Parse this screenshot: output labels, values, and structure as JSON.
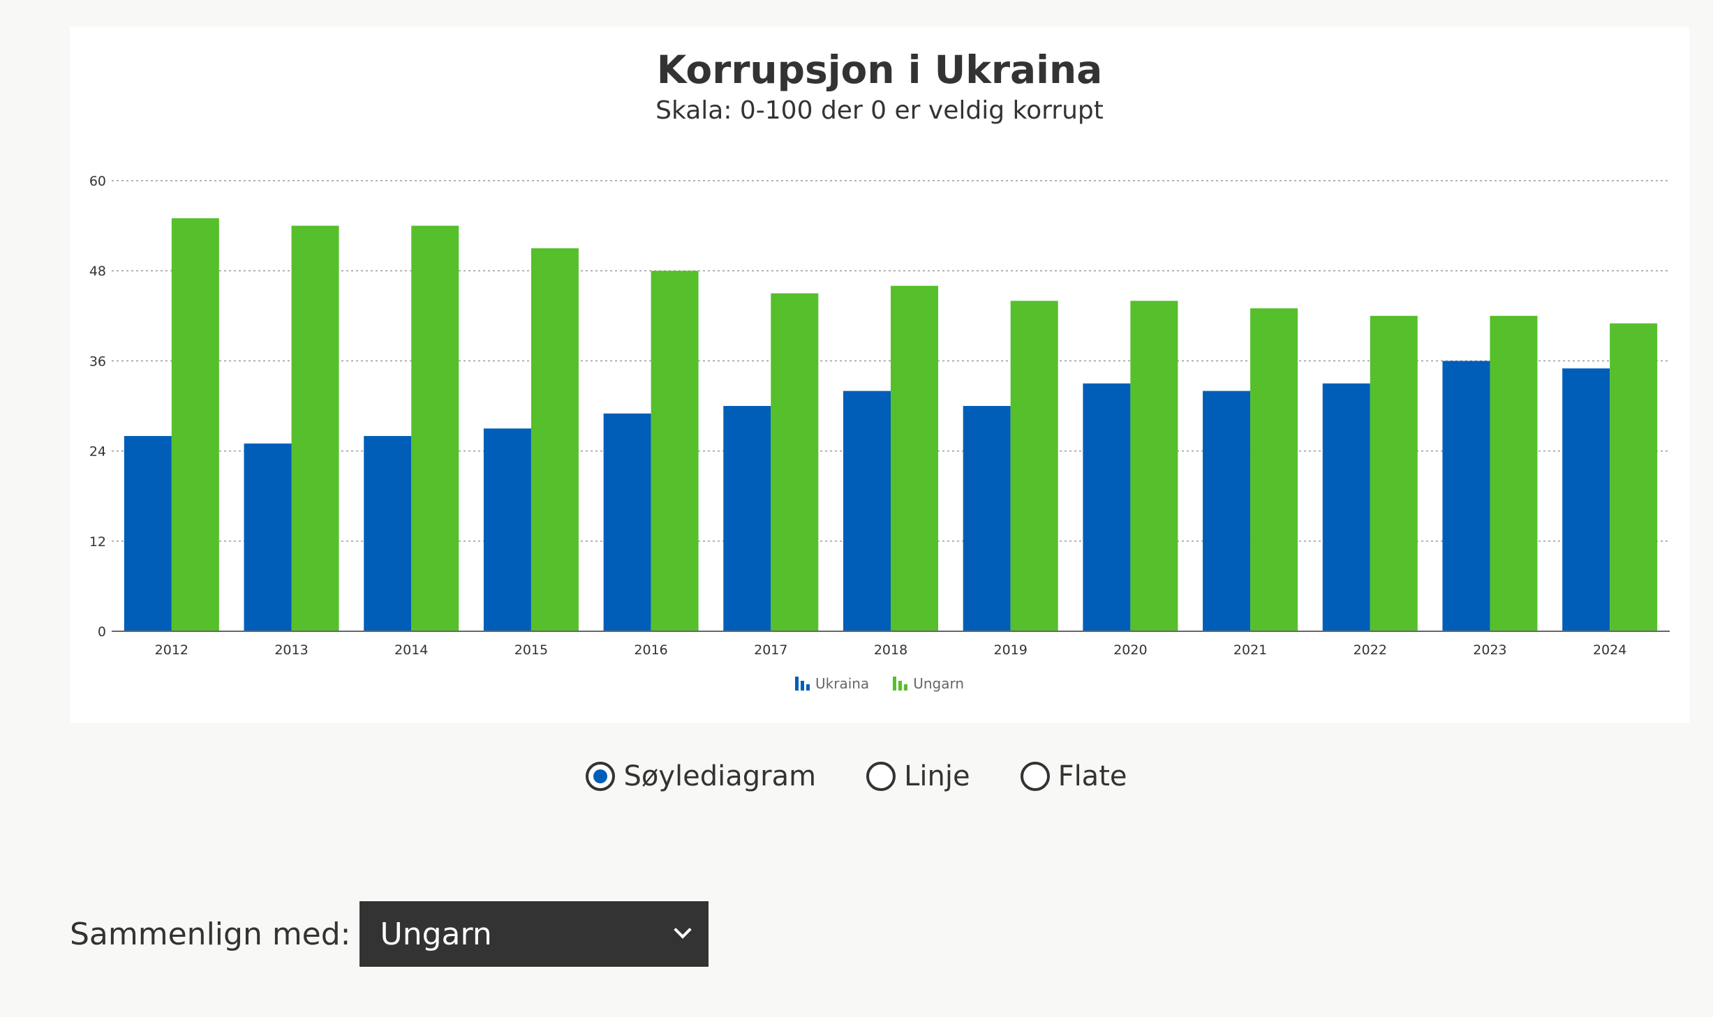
{
  "chart_data": {
    "type": "bar",
    "title": "Korrupsjon i Ukraina",
    "subtitle": "Skala: 0-100 der 0 er veldig korrupt",
    "xlabel": "",
    "ylabel": "",
    "ylim": [
      0,
      60
    ],
    "yticks": [
      0,
      12,
      24,
      36,
      48,
      60
    ],
    "grid": true,
    "legend_position": "bottom-center",
    "categories": [
      "2012",
      "2013",
      "2014",
      "2015",
      "2016",
      "2017",
      "2018",
      "2019",
      "2020",
      "2021",
      "2022",
      "2023",
      "2024"
    ],
    "series": [
      {
        "name": "Ukraina",
        "color": "#005eb8",
        "values": [
          26,
          25,
          26,
          27,
          29,
          30,
          32,
          30,
          33,
          32,
          33,
          36,
          35
        ]
      },
      {
        "name": "Ungarn",
        "color": "#56bf2c",
        "values": [
          55,
          54,
          54,
          51,
          48,
          45,
          46,
          44,
          44,
          43,
          42,
          42,
          41
        ]
      }
    ]
  },
  "chart_type_selector": {
    "selected": "Søylediagram",
    "options": [
      {
        "label": "Søylediagram",
        "selected": true
      },
      {
        "label": "Linje",
        "selected": false
      },
      {
        "label": "Flate",
        "selected": false
      }
    ]
  },
  "compare": {
    "label": "Sammenlign med:",
    "selected": "Ungarn",
    "icon": "chevron-down-icon"
  }
}
